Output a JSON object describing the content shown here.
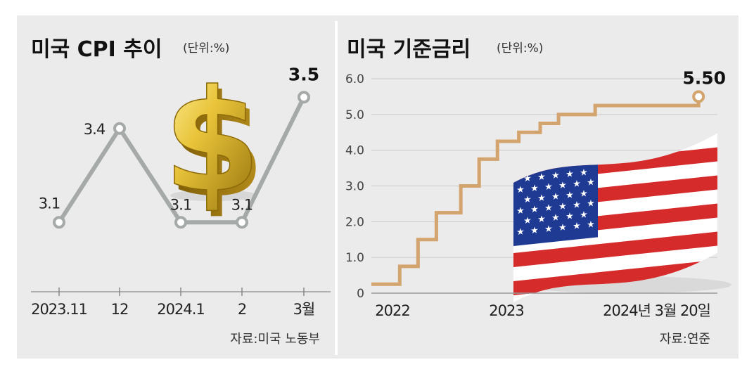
{
  "colors": {
    "background": "#ebebeb",
    "cpi_line": "#a5a9a8",
    "rate_line": "#d3a46d",
    "axis": "#999999"
  },
  "cpi_panel": {
    "title": "미국 CPI 추이",
    "unit": "(단위:%)",
    "source": "자료:미국 노동부"
  },
  "rate_panel": {
    "title": "미국 기준금리",
    "unit": "(단위:%)",
    "source": "자료:연준"
  },
  "icons": [
    "dollar-sign-icon",
    "us-flag-icon"
  ],
  "chart_data": [
    {
      "type": "line",
      "title": "미국 CPI 추이",
      "unit": "(단위:%)",
      "categories": [
        "2023.11",
        "12",
        "2024.1",
        "2",
        "3월"
      ],
      "values": [
        3.1,
        3.4,
        3.1,
        3.1,
        3.5
      ],
      "data_labels": [
        "3.1",
        "3.4",
        "3.1",
        "3.1",
        "3.5"
      ],
      "highlight_index": 4,
      "ylim": [
        2.95,
        3.55
      ],
      "grid": false,
      "source": "자료:미국 노동부"
    },
    {
      "type": "line",
      "step": true,
      "title": "미국 기준금리",
      "unit": "(단위:%)",
      "x_ticks": [
        "2022",
        "2023",
        "2024년 3월 20일"
      ],
      "y_ticks": [
        "0",
        "1.0",
        "2.0",
        "3.0",
        "4.0",
        "5.0",
        "6.0"
      ],
      "ylim": [
        0,
        6
      ],
      "grid": true,
      "steps": [
        {
          "date": "2022-03-17",
          "value": 0.25
        },
        {
          "date": "2022-05-05",
          "value": 0.75
        },
        {
          "date": "2022-06-16",
          "value": 1.5
        },
        {
          "date": "2022-07-28",
          "value": 2.25
        },
        {
          "date": "2022-09-22",
          "value": 3.0
        },
        {
          "date": "2022-11-03",
          "value": 3.75
        },
        {
          "date": "2022-12-15",
          "value": 4.25
        },
        {
          "date": "2023-02-02",
          "value": 4.5
        },
        {
          "date": "2023-03-23",
          "value": 4.75
        },
        {
          "date": "2023-05-04",
          "value": 5.0
        },
        {
          "date": "2023-07-27",
          "value": 5.25
        },
        {
          "date": "2024-03-20",
          "value": 5.5
        }
      ],
      "end_label": "5.50",
      "source": "자료:연준"
    }
  ]
}
